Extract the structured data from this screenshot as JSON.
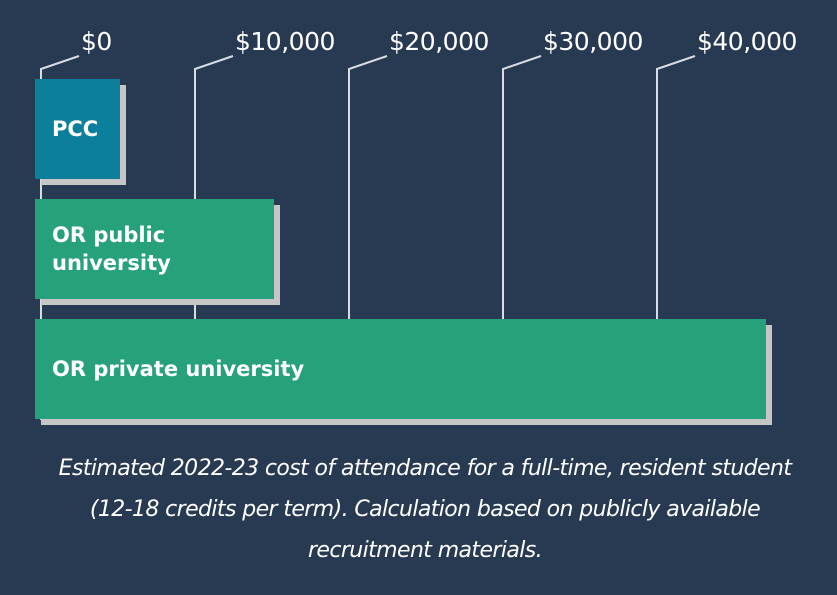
{
  "chart_data": {
    "type": "bar",
    "orientation": "horizontal",
    "title": "",
    "xlabel": "",
    "ylabel": "",
    "categories": [
      "PCC",
      "OR public university",
      "OR private university"
    ],
    "values": [
      5100,
      15100,
      47100
    ],
    "x_ticks": [
      0,
      10000,
      20000,
      30000,
      40000
    ],
    "x_tick_labels": [
      "$0",
      "$10,000",
      "$20,000",
      "$30,000",
      "$40,000"
    ],
    "xlim": [
      0,
      47500
    ],
    "grid": true,
    "legend": null,
    "caption": "Estimated 2022-23 cost of attendance for a full-time, resident student (12-18 credits per term). Calculation based on publicly available recruitment materials."
  },
  "colors": {
    "background": "#273a52",
    "pcc_bar": "#0c7f9c",
    "university_bar": "#26a17b",
    "shadow": "#c6c6c6",
    "gridline": "#d8dde3"
  },
  "bars": [
    {
      "label": "PCC",
      "color": "#0c7f9c"
    },
    {
      "label": "OR public university",
      "color": "#26a17b"
    },
    {
      "label": "OR private university",
      "color": "#26a17b"
    }
  ],
  "axis": {
    "ticks": [
      {
        "value": 0,
        "label": "$0"
      },
      {
        "value": 10000,
        "label": "$10,000"
      },
      {
        "value": 20000,
        "label": "$20,000"
      },
      {
        "value": 30000,
        "label": "$30,000"
      },
      {
        "value": 40000,
        "label": "$40,000"
      }
    ]
  },
  "caption": "Estimated 2022-23 cost of attendance for a full-time, resident student (12-18 credits per term). Calculation based on publicly available recruitment materials."
}
